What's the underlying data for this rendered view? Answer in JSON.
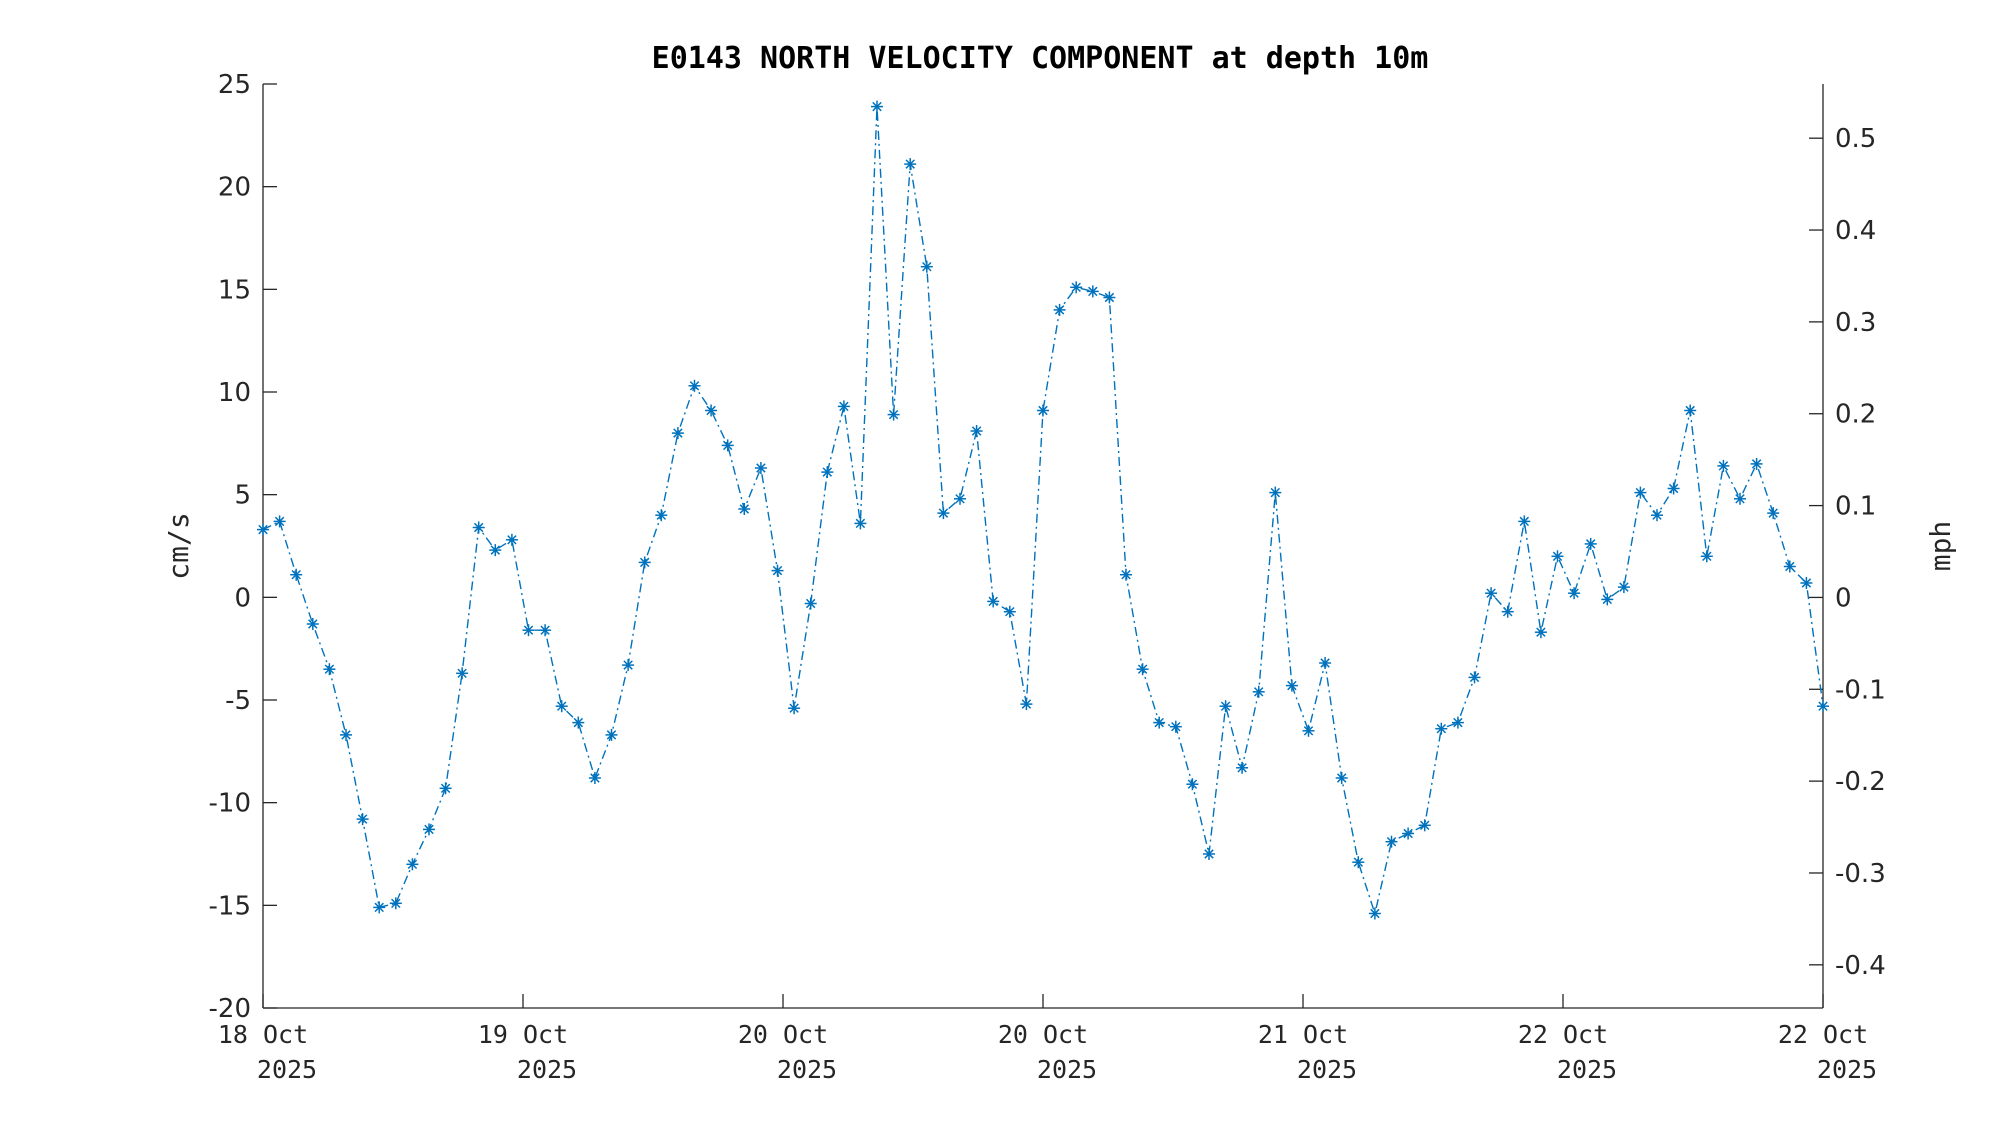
{
  "chart_data": {
    "type": "line",
    "title": "E0143 NORTH VELOCITY COMPONENT at depth 10m",
    "ylabel": "cm/s",
    "y2label": "mph",
    "ylim": [
      -20,
      25
    ],
    "y2lim_mph": [
      -0.447,
      0.559
    ],
    "yticks": [
      "-20",
      "-15",
      "-10",
      "-5",
      "0",
      "5",
      "10",
      "15",
      "20",
      "25"
    ],
    "y2ticks": [
      "-0.4",
      "-0.3",
      "-0.2",
      "-0.1",
      "0",
      "0.1",
      "0.2",
      "0.3",
      "0.4",
      "0.5"
    ],
    "xticks": [
      {
        "day": "18 Oct",
        "year": "2025"
      },
      {
        "day": "19 Oct",
        "year": "2025"
      },
      {
        "day": "20 Oct",
        "year": "2025"
      },
      {
        "day": "20 Oct",
        "year": "2025"
      },
      {
        "day": "21 Oct",
        "year": "2025"
      },
      {
        "day": "22 Oct",
        "year": "2025"
      },
      {
        "day": "22 Oct",
        "year": "2025"
      }
    ],
    "grid": false,
    "line_style": "dash-dot",
    "marker": "asterisk",
    "color": "#0072BD",
    "series": [
      {
        "values": [
          3.3,
          3.7,
          1.1,
          -1.3,
          -3.5,
          -6.7,
          -10.8,
          -15.1,
          -14.9,
          -13.0,
          -11.3,
          -9.3,
          -3.7,
          3.4,
          2.3,
          2.8,
          -1.6,
          -1.6,
          -5.3,
          -6.1,
          -8.8,
          -6.7,
          -3.3,
          1.7,
          4.0,
          8.0,
          10.3,
          9.1,
          7.4,
          4.3,
          6.3,
          1.3,
          -5.4,
          -0.3,
          6.1,
          9.3,
          3.6,
          23.9,
          8.9,
          21.1,
          16.1,
          4.1,
          4.8,
          8.1,
          -0.2,
          -0.7,
          -5.2,
          9.1,
          14.0,
          15.1,
          14.9,
          14.6,
          1.1,
          -3.5,
          -6.1,
          -6.3,
          -9.1,
          -12.5,
          -5.3,
          -8.3,
          -4.6,
          5.1,
          -4.3,
          -6.5,
          -3.2,
          -8.8,
          -12.9,
          -15.4,
          -11.9,
          -11.5,
          -11.1,
          -6.4,
          -6.1,
          -3.9,
          0.2,
          -0.7,
          3.7,
          -1.7,
          2.0,
          0.2,
          2.6,
          -0.1,
          0.5,
          5.1,
          4.0,
          5.3,
          9.1,
          2.0,
          6.4,
          4.8,
          6.5,
          4.1,
          1.5,
          0.7,
          -5.3
        ]
      }
    ]
  }
}
